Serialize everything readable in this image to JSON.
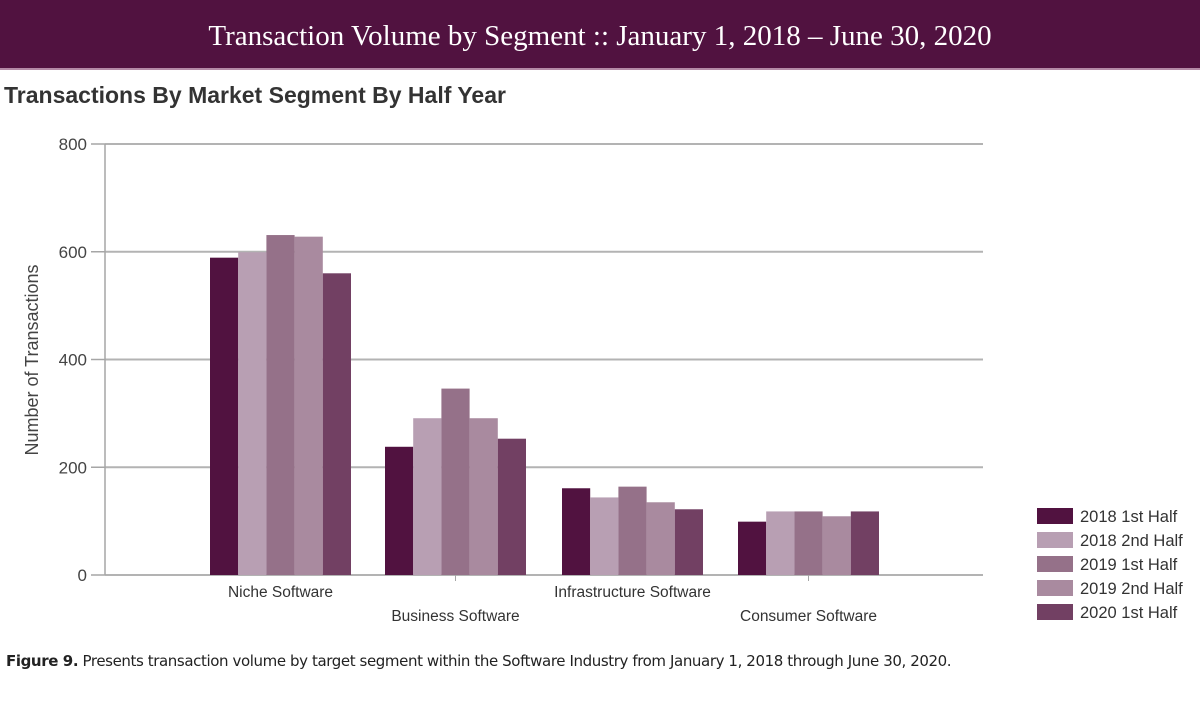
{
  "banner": {
    "title": "Transaction Volume by Segment :: January 1, 2018 – June 30, 2020"
  },
  "caption": {
    "figure_label": "Figure 9.",
    "text": " Presents transaction volume by target segment within the Software Industry from January 1, 2018 through June 30, 2020."
  },
  "chart_data": {
    "type": "bar",
    "title": "Transactions By Market Segment By Half Year",
    "xlabel": "",
    "ylabel": "Number of Transactions",
    "ylim": [
      0,
      800
    ],
    "yticks": [
      0,
      200,
      400,
      600,
      800
    ],
    "grid": true,
    "legend_position": "bottom-right",
    "categories": [
      "Niche Software",
      "Business Software",
      "Infrastructure Software",
      "Consumer Software"
    ],
    "series": [
      {
        "name": "2018 1st Half",
        "color": "#511240",
        "values": [
          589,
          238,
          161,
          99
        ]
      },
      {
        "name": "2018 2nd Half",
        "color": "#b89fb3",
        "values": [
          599,
          291,
          144,
          118
        ]
      },
      {
        "name": "2019 1st Half",
        "color": "#957189",
        "values": [
          631,
          346,
          164,
          118
        ]
      },
      {
        "name": "2019 2nd Half",
        "color": "#a98a9f",
        "values": [
          628,
          291,
          135,
          109
        ]
      },
      {
        "name": "2020 1st Half",
        "color": "#724063",
        "values": [
          560,
          253,
          122,
          118
        ]
      }
    ]
  }
}
